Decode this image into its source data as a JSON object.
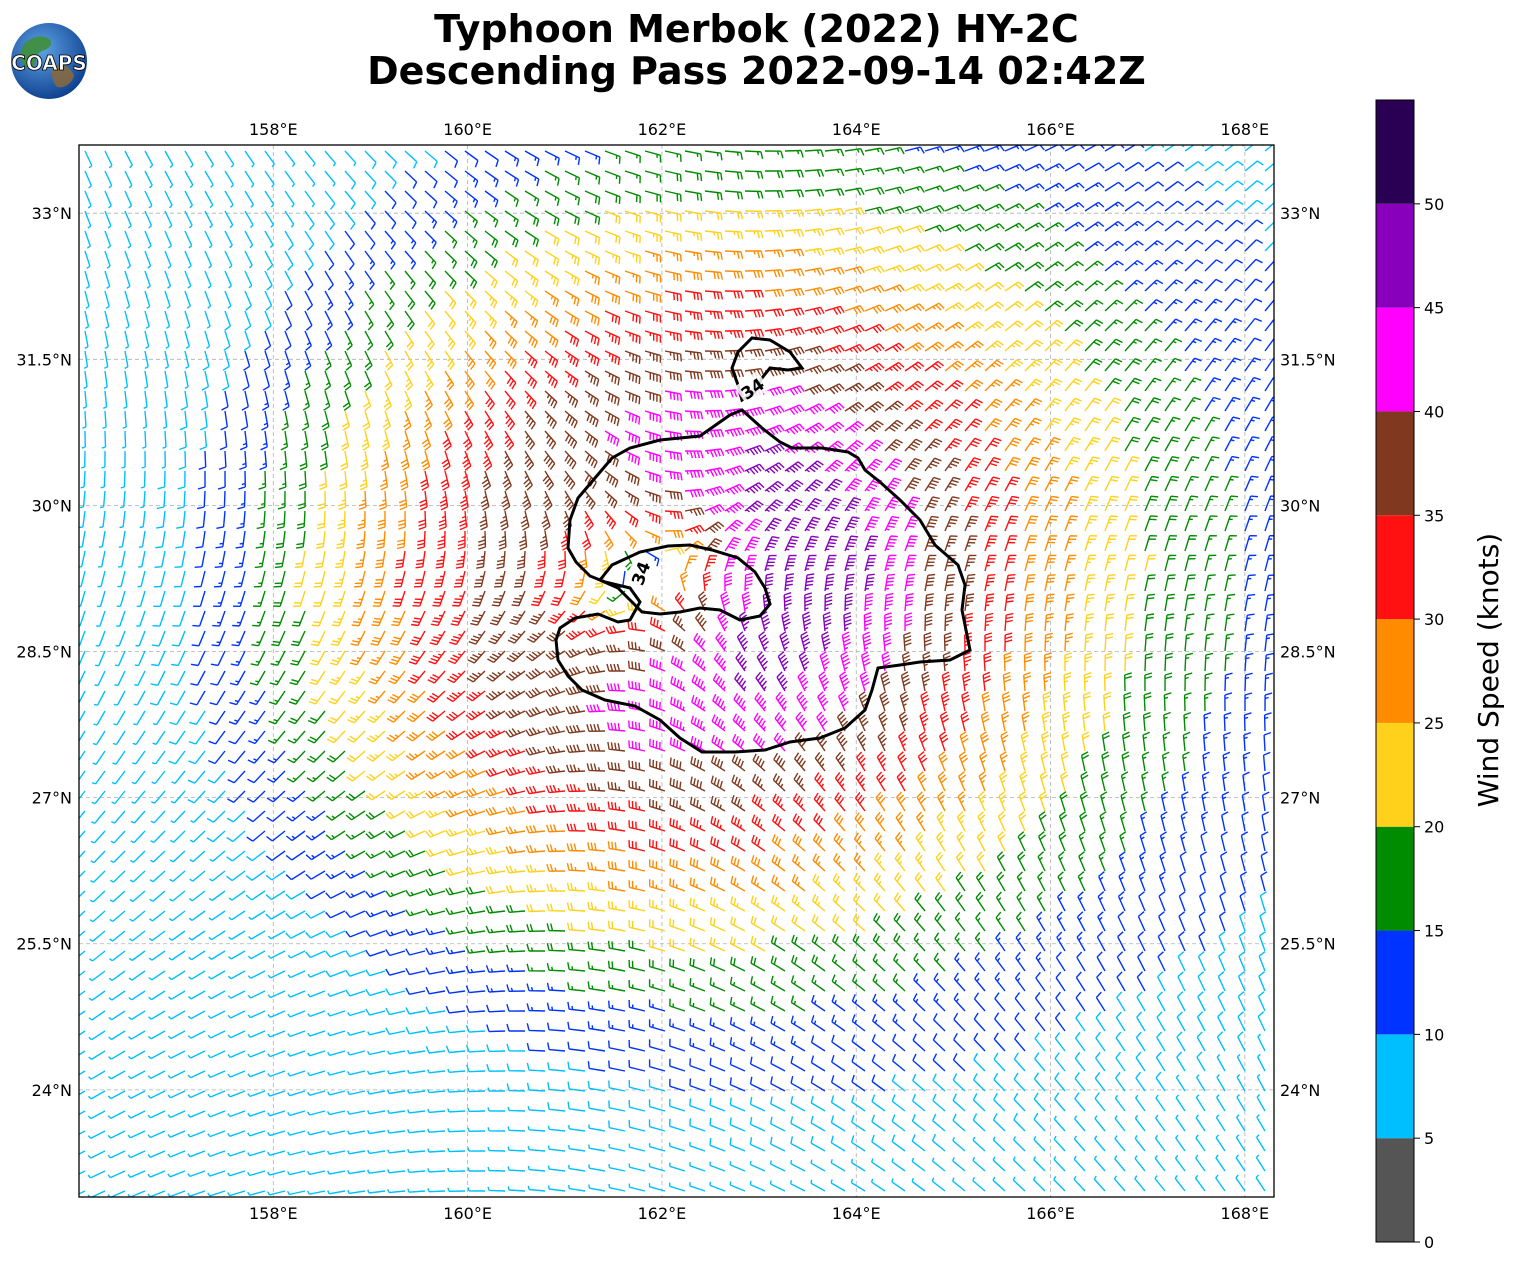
{
  "title_line1": "Typhoon Merbok (2022) HY-2C",
  "title_line2": "Descending Pass 2022-09-14 02:42Z",
  "logo_text": "COAPS",
  "map": {
    "lon_range": [
      156.0,
      168.3
    ],
    "lat_range": [
      22.9,
      33.7
    ],
    "lon_ticks": [
      {
        "value": 158,
        "label": "158°E"
      },
      {
        "value": 160,
        "label": "160°E"
      },
      {
        "value": 162,
        "label": "162°E"
      },
      {
        "value": 164,
        "label": "164°E"
      },
      {
        "value": 166,
        "label": "166°E"
      },
      {
        "value": 168,
        "label": "168°E"
      }
    ],
    "lat_ticks": [
      {
        "value": 33,
        "label": "33°N"
      },
      {
        "value": 31.5,
        "label": "31.5°N"
      },
      {
        "value": 30,
        "label": "30°N"
      },
      {
        "value": 28.5,
        "label": "28.5°N"
      },
      {
        "value": 27,
        "label": "27°N"
      },
      {
        "value": 25.5,
        "label": "25.5°N"
      },
      {
        "value": 24,
        "label": "24°N"
      }
    ],
    "storm_center": {
      "lon": 161.9,
      "lat": 29.3
    },
    "contour_label": "34",
    "contour_level_kt": 34,
    "barb_field": "cyclonic wind barbs, counter-clockwise circulation around storm center",
    "grid": true
  },
  "colorbar": {
    "label": "Wind Speed (knots)",
    "bins": [
      {
        "min": 0,
        "max": 5,
        "color": "#555555"
      },
      {
        "min": 5,
        "max": 10,
        "color": "#00bfff"
      },
      {
        "min": 10,
        "max": 15,
        "color": "#0033ff"
      },
      {
        "min": 15,
        "max": 20,
        "color": "#008c00"
      },
      {
        "min": 20,
        "max": 25,
        "color": "#ffd11a"
      },
      {
        "min": 25,
        "max": 30,
        "color": "#ff8c00"
      },
      {
        "min": 30,
        "max": 35,
        "color": "#ff1111"
      },
      {
        "min": 35,
        "max": 40,
        "color": "#80391e"
      },
      {
        "min": 40,
        "max": 45,
        "color": "#ff00ff"
      },
      {
        "min": 45,
        "max": 50,
        "color": "#8800bb"
      },
      {
        "min": 50,
        "max": 55,
        "color": "#2a0055"
      }
    ],
    "tick_labels": [
      "0",
      "5",
      "10",
      "15",
      "20",
      "25",
      "30",
      "35",
      "40",
      "45",
      "50"
    ]
  }
}
